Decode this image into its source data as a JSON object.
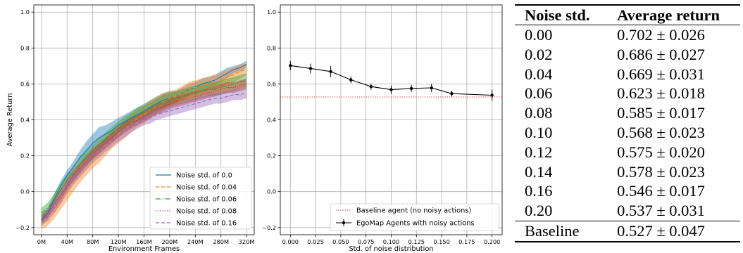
{
  "chart_data": [
    {
      "type": "line",
      "xlabel": "Environment Frames",
      "ylabel": "Average Return",
      "xlim": [
        -12,
        332
      ],
      "ylim": [
        -0.24,
        1.04
      ],
      "xticks": [
        0,
        40,
        80,
        120,
        160,
        200,
        240,
        280,
        320
      ],
      "xtick_labels": [
        "0M",
        "40M",
        "80M",
        "120M",
        "160M",
        "200M",
        "240M",
        "280M",
        "320M"
      ],
      "yticks": [
        -0.2,
        0.0,
        0.2,
        0.4,
        0.6,
        0.8,
        1.0
      ],
      "ytick_labels": [
        "−0.2",
        "0.0",
        "0.2",
        "0.4",
        "0.6",
        "0.8",
        "1.0"
      ],
      "grid": true,
      "legend_position": "bottom-right",
      "x": [
        0,
        10,
        20,
        30,
        40,
        50,
        60,
        70,
        80,
        90,
        100,
        110,
        120,
        130,
        140,
        150,
        160,
        170,
        180,
        190,
        200,
        210,
        220,
        230,
        240,
        250,
        260,
        270,
        280,
        290,
        300,
        310,
        320
      ],
      "series": [
        {
          "name": "Noise std. of 0.0",
          "color": "#1f77b4",
          "style": "solid",
          "values": [
            -0.16,
            -0.12,
            -0.04,
            0.03,
            0.09,
            0.14,
            0.19,
            0.23,
            0.27,
            0.3,
            0.32,
            0.34,
            0.37,
            0.39,
            0.41,
            0.43,
            0.45,
            0.47,
            0.49,
            0.51,
            0.52,
            0.53,
            0.55,
            0.57,
            0.58,
            0.6,
            0.61,
            0.62,
            0.64,
            0.66,
            0.68,
            0.69,
            0.71
          ],
          "spread": [
            0.03,
            0.03,
            0.03,
            0.03,
            0.03,
            0.03,
            0.04,
            0.05,
            0.05,
            0.06,
            0.05,
            0.05,
            0.04,
            0.04,
            0.04,
            0.04,
            0.04,
            0.04,
            0.04,
            0.04,
            0.04,
            0.03,
            0.03,
            0.03,
            0.03,
            0.03,
            0.03,
            0.03,
            0.03,
            0.03,
            0.02,
            0.02,
            0.02
          ]
        },
        {
          "name": "Noise std. of 0.04",
          "color": "#ff7f0e",
          "style": "dashed",
          "values": [
            -0.18,
            -0.16,
            -0.11,
            -0.06,
            0.0,
            0.05,
            0.1,
            0.14,
            0.18,
            0.21,
            0.25,
            0.29,
            0.32,
            0.35,
            0.38,
            0.41,
            0.43,
            0.46,
            0.48,
            0.5,
            0.52,
            0.53,
            0.55,
            0.57,
            0.58,
            0.59,
            0.6,
            0.61,
            0.62,
            0.64,
            0.65,
            0.67,
            0.68
          ],
          "spread": [
            0.03,
            0.03,
            0.04,
            0.04,
            0.05,
            0.05,
            0.05,
            0.05,
            0.05,
            0.05,
            0.05,
            0.05,
            0.05,
            0.05,
            0.05,
            0.05,
            0.05,
            0.05,
            0.05,
            0.05,
            0.04,
            0.04,
            0.04,
            0.04,
            0.04,
            0.04,
            0.04,
            0.04,
            0.04,
            0.04,
            0.04,
            0.04,
            0.03
          ]
        },
        {
          "name": "Noise std. of 0.06",
          "color": "#2ca02c",
          "style": "dashdot",
          "values": [
            -0.12,
            -0.09,
            -0.04,
            0.01,
            0.06,
            0.1,
            0.15,
            0.19,
            0.22,
            0.26,
            0.29,
            0.32,
            0.35,
            0.38,
            0.4,
            0.43,
            0.44,
            0.46,
            0.48,
            0.5,
            0.51,
            0.52,
            0.53,
            0.54,
            0.55,
            0.56,
            0.57,
            0.57,
            0.58,
            0.59,
            0.6,
            0.61,
            0.62
          ],
          "spread": [
            0.03,
            0.03,
            0.03,
            0.04,
            0.04,
            0.04,
            0.04,
            0.04,
            0.04,
            0.04,
            0.04,
            0.04,
            0.04,
            0.04,
            0.04,
            0.04,
            0.04,
            0.04,
            0.04,
            0.04,
            0.04,
            0.04,
            0.04,
            0.04,
            0.04,
            0.04,
            0.04,
            0.04,
            0.04,
            0.04,
            0.04,
            0.04,
            0.04
          ]
        },
        {
          "name": "Noise std. of 0.08",
          "color": "#d62728",
          "style": "dotted",
          "values": [
            -0.15,
            -0.12,
            -0.07,
            -0.02,
            0.04,
            0.09,
            0.13,
            0.17,
            0.21,
            0.24,
            0.27,
            0.3,
            0.33,
            0.36,
            0.38,
            0.4,
            0.42,
            0.44,
            0.46,
            0.47,
            0.49,
            0.5,
            0.51,
            0.52,
            0.53,
            0.54,
            0.55,
            0.56,
            0.57,
            0.58,
            0.58,
            0.59,
            0.6
          ],
          "spread": [
            0.02,
            0.02,
            0.03,
            0.03,
            0.03,
            0.03,
            0.03,
            0.03,
            0.03,
            0.03,
            0.03,
            0.03,
            0.03,
            0.03,
            0.03,
            0.03,
            0.03,
            0.03,
            0.03,
            0.03,
            0.03,
            0.03,
            0.03,
            0.03,
            0.03,
            0.03,
            0.03,
            0.03,
            0.03,
            0.03,
            0.03,
            0.03,
            0.03
          ]
        },
        {
          "name": "Noise std. of 0.16",
          "color": "#9467bd",
          "style": "dashed",
          "values": [
            -0.17,
            -0.14,
            -0.09,
            -0.04,
            0.02,
            0.07,
            0.11,
            0.15,
            0.19,
            0.22,
            0.25,
            0.28,
            0.31,
            0.33,
            0.36,
            0.38,
            0.4,
            0.41,
            0.43,
            0.44,
            0.45,
            0.46,
            0.47,
            0.48,
            0.49,
            0.5,
            0.51,
            0.52,
            0.52,
            0.53,
            0.54,
            0.54,
            0.55
          ],
          "spread": [
            0.02,
            0.02,
            0.03,
            0.03,
            0.03,
            0.03,
            0.03,
            0.03,
            0.03,
            0.03,
            0.03,
            0.03,
            0.03,
            0.03,
            0.03,
            0.03,
            0.03,
            0.03,
            0.03,
            0.03,
            0.03,
            0.03,
            0.03,
            0.03,
            0.03,
            0.03,
            0.03,
            0.03,
            0.03,
            0.03,
            0.03,
            0.03,
            0.03
          ]
        }
      ]
    },
    {
      "type": "line",
      "xlabel": "Std. of noise distribution",
      "ylabel": "",
      "xlim": [
        -0.01,
        0.21
      ],
      "ylim": [
        -0.24,
        1.04
      ],
      "xticks": [
        0.0,
        0.025,
        0.05,
        0.075,
        0.1,
        0.125,
        0.15,
        0.175,
        0.2
      ],
      "xtick_labels": [
        "0.000",
        "0.025",
        "0.050",
        "0.075",
        "0.100",
        "0.125",
        "0.150",
        "0.175",
        "0.200"
      ],
      "yticks": [
        -0.2,
        0.0,
        0.2,
        0.4,
        0.6,
        0.8,
        1.0
      ],
      "ytick_labels": [
        "−0.2",
        "0.0",
        "0.2",
        "0.4",
        "0.6",
        "0.8",
        "1.0"
      ],
      "grid": true,
      "legend_position": "bottom-right",
      "baseline": {
        "name": "Baseline agent (no noisy actions)",
        "value": 0.527,
        "color": "#d62728",
        "style": "dotted"
      },
      "series": [
        {
          "name": "EgoMap Agents with noisy actions",
          "color": "#000000",
          "x": [
            0.0,
            0.02,
            0.04,
            0.06,
            0.08,
            0.1,
            0.12,
            0.14,
            0.16,
            0.2
          ],
          "values": [
            0.702,
            0.686,
            0.669,
            0.623,
            0.585,
            0.568,
            0.575,
            0.578,
            0.546,
            0.537
          ],
          "errors": [
            0.026,
            0.027,
            0.031,
            0.018,
            0.017,
            0.023,
            0.02,
            0.023,
            0.017,
            0.031
          ]
        }
      ]
    }
  ],
  "table": {
    "headers": [
      "Noise std.",
      "Average return"
    ],
    "rows": [
      [
        "0.00",
        "0.702 ± 0.026"
      ],
      [
        "0.02",
        "0.686 ± 0.027"
      ],
      [
        "0.04",
        "0.669 ± 0.031"
      ],
      [
        "0.06",
        "0.623 ± 0.018"
      ],
      [
        "0.08",
        "0.585 ± 0.017"
      ],
      [
        "0.10",
        "0.568 ± 0.023"
      ],
      [
        "0.12",
        "0.575 ± 0.020"
      ],
      [
        "0.14",
        "0.578 ± 0.023"
      ],
      [
        "0.16",
        "0.546 ± 0.017"
      ],
      [
        "0.20",
        "0.537 ± 0.031"
      ]
    ],
    "baseline": [
      "Baseline",
      "0.527 ± 0.047"
    ]
  }
}
